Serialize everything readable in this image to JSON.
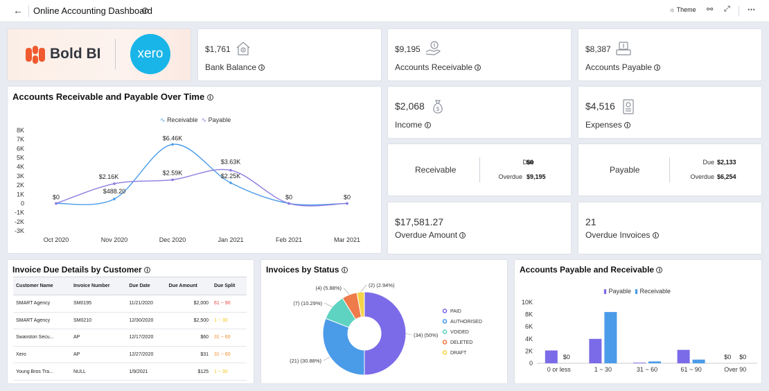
{
  "header": {
    "title": "Online Accounting Dashboard",
    "theme_label": "Theme",
    "back_icon": "←",
    "info_icon": "i",
    "more_icon": "⋯",
    "expand_icon": "⤢",
    "link_icon": "⚯"
  },
  "logos": {
    "boldbi": "Bold BI",
    "xero": "xero"
  },
  "kpis": {
    "bank_balance": {
      "value": "$1,761",
      "label": "Bank Balance"
    },
    "accounts_receivable": {
      "value": "$9,195",
      "label": "Accounts Receivable"
    },
    "accounts_payable": {
      "value": "$8,387",
      "label": "Accounts Payable"
    },
    "income": {
      "value": "$2,068",
      "label": "Income"
    },
    "expenses": {
      "value": "$4,516",
      "label": "Expenses"
    },
    "overdue_amount": {
      "value": "$17,581.27",
      "label": "Overdue Amount"
    },
    "overdue_invoices": {
      "value": "21",
      "label": "Overdue Invoices"
    }
  },
  "receivable_due": {
    "title": "Receivable",
    "due_label": "Due",
    "due_value": "$0",
    "overdue_label": "Overdue",
    "overdue_value": "$9,195"
  },
  "payable_due": {
    "title": "Payable",
    "due_label": "Due",
    "due_value": "$2,133",
    "overdue_label": "Overdue",
    "overdue_value": "$6,254"
  },
  "line_chart": {
    "title": "Accounts Receivable and Payable Over Time",
    "legend": [
      "Receivable",
      "Payable"
    ]
  },
  "invoice_table": {
    "title": "Invoice Due Details by Customer",
    "columns": [
      "Customer Name",
      "Invoice Number",
      "Due Date",
      "Due Amount",
      "Due Split"
    ],
    "rows": [
      {
        "customer": "SMART Agency",
        "invoice": "SM0195",
        "date": "11/21/2020",
        "amount": "$2,000",
        "split": "61 ~ 90",
        "color": "#e8463c"
      },
      {
        "customer": "SMART Agency",
        "invoice": "SM0210",
        "date": "12/30/2020",
        "amount": "$2,500",
        "split": "1 ~ 30",
        "color": "#f2c81c"
      },
      {
        "customer": "Swanston Secu...",
        "invoice": "AP",
        "date": "12/17/2020",
        "amount": "$60",
        "split": "31 ~ 60",
        "color": "#f08b28"
      },
      {
        "customer": "Xero",
        "invoice": "AP",
        "date": "12/27/2020",
        "amount": "$31",
        "split": "31 ~ 60",
        "color": "#f08b28"
      },
      {
        "customer": "Young Bros Tra...",
        "invoice": "NULL",
        "date": "1/9/2021",
        "amount": "$125",
        "split": "1 ~ 30",
        "color": "#f2c81c"
      }
    ]
  },
  "status_chart": {
    "title": "Invoices by Status",
    "legend": [
      "PAID",
      "AUTHORISED",
      "VOIDED",
      "DELETED",
      "DRAFT"
    ]
  },
  "bar_chart": {
    "title": "Accounts Payable and Receivable",
    "legend": [
      "Payable",
      "Receivable"
    ]
  },
  "chart_data": [
    {
      "type": "line",
      "title": "Accounts Receivable and Payable Over Time",
      "categories": [
        "Oct 2020",
        "Nov 2020",
        "Dec 2020",
        "Jan 2021",
        "Feb 2021",
        "Mar 2021"
      ],
      "series": [
        {
          "name": "Receivable",
          "color": "#4a9be8",
          "values": [
            0,
            488.2,
            6460,
            2250,
            0,
            0
          ],
          "labels": [
            "$0",
            "$488.20",
            "$6.46K",
            "$2.25K",
            "$0",
            "$0"
          ]
        },
        {
          "name": "Payable",
          "color": "#8a7be0",
          "values": [
            0,
            2160,
            2590,
            3630,
            0,
            0
          ],
          "labels": [
            "$0",
            "$2.16K",
            "$2.59K",
            "$3.63K",
            "$0",
            "$0"
          ]
        }
      ],
      "yticks": [
        "8K",
        "7K",
        "6K",
        "5K",
        "4K",
        "3K",
        "2K",
        "1K",
        "0",
        "-1K",
        "-2K",
        "-3K"
      ],
      "ylim": [
        -3000,
        8000
      ]
    },
    {
      "type": "pie",
      "title": "Invoices by Status",
      "categories": [
        "PAID",
        "AUTHORISED",
        "VOIDED",
        "DELETED",
        "DRAFT"
      ],
      "values": [
        34,
        21,
        7,
        4,
        2
      ],
      "labels": [
        "(34) (50%)",
        "(21) (30.88%)",
        "(7) (10.29%)",
        "(4) (5.88%)",
        "(2) (2.94%)"
      ],
      "colors": [
        "#7b6be8",
        "#4a9be8",
        "#5fd3c1",
        "#ef7a4a",
        "#f5d44a"
      ]
    },
    {
      "type": "bar",
      "title": "Accounts Payable and Receivable",
      "categories": [
        "0 or less",
        "1 ~ 30",
        "31 ~ 60",
        "61 ~ 90",
        "Over 90"
      ],
      "series": [
        {
          "name": "Payable",
          "color": "#7b6be8",
          "values": [
            2100,
            4000,
            100,
            2200,
            0
          ]
        },
        {
          "name": "Receivable",
          "color": "#4a9be8",
          "values": [
            0,
            8400,
            300,
            600,
            0
          ]
        }
      ],
      "zero_labels": [
        "$0",
        "",
        "",
        "",
        "$0"
      ],
      "zero_labels_receivable": [
        "$0",
        "",
        "",
        "",
        "$0"
      ],
      "yticks": [
        "10K",
        "8K",
        "6K",
        "4K",
        "2K",
        "0"
      ],
      "ylim": [
        0,
        10000
      ]
    }
  ]
}
